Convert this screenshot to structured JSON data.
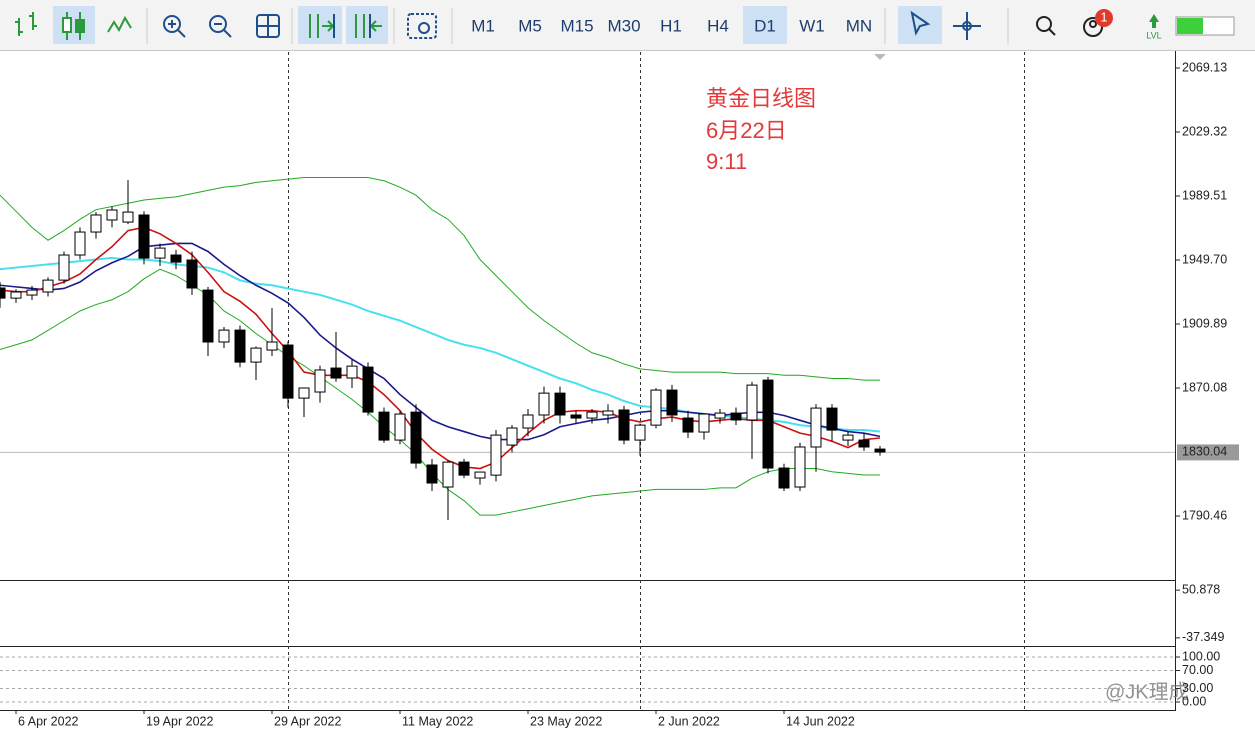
{
  "toolbar": {
    "timeframes": [
      "M1",
      "M5",
      "M15",
      "M30",
      "H1",
      "H4",
      "D1",
      "W1",
      "MN"
    ],
    "active_timeframe": "D1",
    "notification_badge": "1",
    "level_label": "LVL"
  },
  "watermark": "@JK理成",
  "chart_data": {
    "type": "candlestick",
    "annotation": [
      "黄金日线图",
      "6月22日",
      "9:11"
    ],
    "categories": [
      null,
      "6 Apr 2022",
      null,
      null,
      null,
      null,
      null,
      null,
      null,
      "19 Apr 2022",
      null,
      null,
      null,
      null,
      null,
      null,
      null,
      "29 Apr 2022",
      null,
      null,
      null,
      null,
      null,
      null,
      null,
      "11 May 2022",
      null,
      null,
      null,
      null,
      null,
      null,
      null,
      "23 May 2022",
      null,
      null,
      null,
      null,
      null,
      null,
      null,
      "2 Jun 2022",
      null,
      null,
      null,
      null,
      null,
      null,
      null,
      "14 Jun 2022",
      null,
      null,
      null,
      null,
      null,
      null
    ],
    "candles": [
      [
        1932.3,
        1936.0,
        1920.0,
        1926.0
      ],
      [
        1926.0,
        1931.5,
        1923.0,
        1929.8
      ],
      [
        1927.9,
        1933.5,
        1924.8,
        1931.0
      ],
      [
        1929.8,
        1939.0,
        1927.0,
        1937.2
      ],
      [
        1937.2,
        1955.0,
        1935.0,
        1952.8
      ],
      [
        1952.8,
        1970.0,
        1950.0,
        1967.1
      ],
      [
        1967.1,
        1979.5,
        1963.0,
        1977.7
      ],
      [
        1974.6,
        1983.0,
        1970.0,
        1980.8
      ],
      [
        1973.3,
        1999.4,
        1972.0,
        1979.5
      ],
      [
        1977.7,
        1980.0,
        1947.0,
        1950.9
      ],
      [
        1950.9,
        1960.0,
        1946.0,
        1957.1
      ],
      [
        1952.8,
        1956.0,
        1944.0,
        1948.4
      ],
      [
        1949.7,
        1955.0,
        1928.0,
        1932.3
      ],
      [
        1931.0,
        1933.0,
        1890.0,
        1898.7
      ],
      [
        1898.7,
        1908.0,
        1895.0,
        1906.1
      ],
      [
        1906.1,
        1909.0,
        1883.0,
        1886.2
      ],
      [
        1886.2,
        1896.0,
        1875.0,
        1894.9
      ],
      [
        1893.7,
        1919.8,
        1890.0,
        1898.7
      ],
      [
        1896.8,
        1899.0,
        1858.0,
        1863.8
      ],
      [
        1863.8,
        1870.0,
        1852.0,
        1870.1
      ],
      [
        1867.6,
        1884.0,
        1861.0,
        1881.3
      ],
      [
        1882.5,
        1905.0,
        1874.0,
        1876.3
      ],
      [
        1876.3,
        1888.0,
        1870.0,
        1883.7
      ],
      [
        1883.1,
        1886.0,
        1853.0,
        1855.1
      ],
      [
        1855.1,
        1858.0,
        1836.0,
        1837.7
      ],
      [
        1837.7,
        1856.0,
        1835.0,
        1853.9
      ],
      [
        1855.1,
        1860.0,
        1820.0,
        1823.4
      ],
      [
        1822.2,
        1826.0,
        1806.0,
        1811.0
      ],
      [
        1808.5,
        1825.0,
        1788.0,
        1824.0
      ],
      [
        1824.0,
        1826.0,
        1814.0,
        1815.9
      ],
      [
        1814.1,
        1818.0,
        1810.0,
        1817.8
      ],
      [
        1815.9,
        1844.0,
        1812.0,
        1840.8
      ],
      [
        1834.6,
        1847.0,
        1830.0,
        1845.2
      ],
      [
        1845.2,
        1857.0,
        1840.0,
        1853.3
      ],
      [
        1853.3,
        1871.0,
        1848.0,
        1866.9
      ],
      [
        1866.9,
        1871.0,
        1848.0,
        1853.3
      ],
      [
        1853.3,
        1856.0,
        1848.0,
        1851.4
      ],
      [
        1851.4,
        1857.0,
        1848.0,
        1855.1
      ],
      [
        1853.3,
        1860.0,
        1848.0,
        1855.8
      ],
      [
        1856.4,
        1859.0,
        1835.0,
        1837.7
      ],
      [
        1837.7,
        1848.0,
        1828.0,
        1847.0
      ],
      [
        1847.0,
        1870.0,
        1845.0,
        1868.8
      ],
      [
        1868.8,
        1872.0,
        1849.0,
        1853.3
      ],
      [
        1851.4,
        1856.0,
        1839.0,
        1842.7
      ],
      [
        1842.7,
        1854.0,
        1838.0,
        1853.9
      ],
      [
        1851.4,
        1857.0,
        1848.0,
        1854.5
      ],
      [
        1854.5,
        1858.0,
        1847.0,
        1850.2
      ],
      [
        1850.2,
        1874.0,
        1826.0,
        1871.9
      ],
      [
        1875.0,
        1877.0,
        1817.0,
        1820.3
      ],
      [
        1820.3,
        1823.0,
        1806.0,
        1807.9
      ],
      [
        1808.5,
        1836.0,
        1806.0,
        1833.4
      ],
      [
        1833.4,
        1860.0,
        1818.0,
        1857.6
      ],
      [
        1857.6,
        1860.0,
        1837.0,
        1843.9
      ],
      [
        1837.7,
        1843.0,
        1834.0,
        1840.8
      ],
      [
        1837.7,
        1842.0,
        1831.0,
        1833.4
      ],
      [
        1832.1,
        1834.0,
        1828.0,
        1830.3
      ]
    ],
    "bullish_color": "#ffffff",
    "bearish_color": "#000000",
    "series": [
      {
        "color": "#22aa22",
        "width": 1,
        "values": [
          1990,
          1980,
          1970,
          1962,
          1968,
          1975,
          1981,
          1983,
          1985,
          1987,
          1988,
          1989,
          1991,
          1993,
          1995,
          1996,
          1998,
          1999,
          2000,
          2001,
          2001,
          2001,
          2001,
          2001,
          1999,
          1995,
          1990,
          1981,
          1975,
          1965,
          1950,
          1940,
          1930,
          1920,
          1912,
          1905,
          1898,
          1892,
          1889,
          1885,
          1882,
          1881,
          1880,
          1880,
          1880,
          1880,
          1879,
          1879,
          1879,
          1878,
          1878,
          1877,
          1876,
          1876,
          1875,
          1875
        ]
      },
      {
        "color": "#22aa22",
        "width": 1,
        "values": [
          1894,
          1897,
          1900,
          1906,
          1912,
          1918,
          1922,
          1925,
          1930,
          1938,
          1944,
          1940,
          1934,
          1928,
          1918,
          1912,
          1904,
          1897,
          1890,
          1884,
          1877,
          1870,
          1863,
          1855,
          1846,
          1838,
          1829,
          1817,
          1807,
          1800,
          1791,
          1791,
          1793,
          1795,
          1797,
          1799,
          1801,
          1803,
          1804,
          1805,
          1806,
          1807,
          1807,
          1807,
          1807,
          1808,
          1808,
          1814,
          1818,
          1820,
          1820,
          1820,
          1818,
          1817,
          1816,
          1816
        ]
      },
      {
        "color": "#48e0f0",
        "width": 2,
        "values": [
          1944,
          1945,
          1946,
          1947,
          1948,
          1949,
          1950,
          1951,
          1950,
          1950,
          1949,
          1947,
          1946,
          1945,
          1942,
          1937,
          1935,
          1934,
          1932,
          1930,
          1928,
          1925,
          1922,
          1918,
          1915,
          1912,
          1908,
          1904,
          1900,
          1897,
          1895,
          1892,
          1888,
          1884,
          1880,
          1876,
          1873,
          1869,
          1866,
          1862,
          1859,
          1858,
          1857,
          1855,
          1854,
          1853,
          1852,
          1851,
          1850,
          1849,
          1847,
          1846,
          1845,
          1844,
          1844,
          1843
        ]
      },
      {
        "color": "#1a1a8c",
        "width": 1.6,
        "values": [
          1934,
          1933,
          1932,
          1931,
          1932,
          1936,
          1943,
          1948,
          1952,
          1958,
          1959,
          1960,
          1960,
          1955,
          1947,
          1940,
          1934,
          1929,
          1923,
          1914,
          1903,
          1895,
          1888,
          1882,
          1876,
          1866,
          1858,
          1850,
          1846,
          1843,
          1840,
          1838,
          1838,
          1838,
          1841,
          1846,
          1848,
          1850,
          1851,
          1853,
          1855,
          1856,
          1856,
          1855,
          1854,
          1853,
          1854,
          1855,
          1855,
          1853,
          1850,
          1847,
          1845,
          1843,
          1842,
          1840
        ]
      },
      {
        "color": "#cc1111",
        "width": 1.6,
        "values": [
          1931,
          1930,
          1930,
          1933,
          1936,
          1941,
          1950,
          1958,
          1968,
          1970,
          1966,
          1960,
          1953,
          1942,
          1930,
          1924,
          1916,
          1904,
          1893,
          1880,
          1878,
          1878,
          1878,
          1874,
          1866,
          1856,
          1842,
          1832,
          1825,
          1821,
          1820,
          1824,
          1833,
          1842,
          1850,
          1855,
          1856,
          1856,
          1855,
          1851,
          1849,
          1851,
          1852,
          1850,
          1849,
          1850,
          1851,
          1850,
          1850,
          1846,
          1842,
          1840,
          1837,
          1833,
          1838,
          1839
        ]
      }
    ],
    "ylim": [
      1750.67,
      2079.08
    ],
    "yticks": [
      2069.13,
      2029.32,
      1989.51,
      {
        "value": 1949.7,
        "label": "1949.70"
      },
      1909.89,
      1870.08,
      {
        "value": 1790.46,
        "label": "1790.46"
      }
    ],
    "last_price": 1830.04,
    "panels": [
      {
        "ylim": [
          -52.4,
          65.9
        ],
        "yticks": [
          50.878,
          -37.349
        ]
      },
      {
        "ylim": [
          -17.8,
          120
        ],
        "yticks": [
          {
            "value": 100,
            "label": "100.00"
          },
          {
            "value": 70,
            "label": "70.00"
          },
          {
            "value": 30,
            "label": "30.00"
          },
          {
            "value": 0,
            "label": "0.00"
          }
        ]
      }
    ]
  }
}
